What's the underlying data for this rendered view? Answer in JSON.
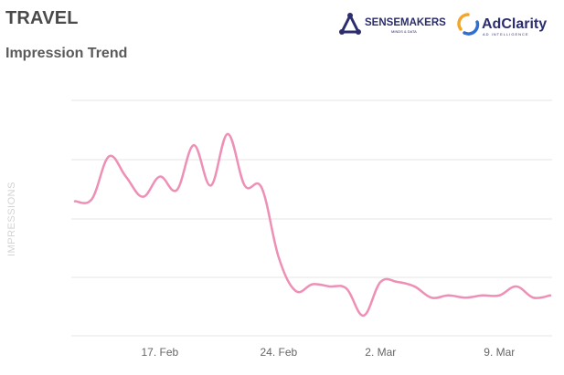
{
  "header": {
    "title": "TRAVEL",
    "subtitle": "Impression Trend"
  },
  "logos": {
    "sensemakers": {
      "name": "SENSEMAKERS",
      "tagline": "MINDS & DATA",
      "color": "#2b2d6e",
      "icon": "triangle-people-icon"
    },
    "adclarity": {
      "name": "AdClarity",
      "tagline": "AD INTELLIGENCE",
      "color": "#2b2d6e",
      "ring_colors": [
        "#f5a623",
        "#2f6fd1"
      ],
      "icon": "ring-icon"
    }
  },
  "colors": {
    "line": "#ee8fb6",
    "grid": "#e6e6e6",
    "axis_label": "#d3d3d3",
    "tick": "#666666"
  },
  "chart_data": {
    "type": "line",
    "title": "Impression Trend",
    "xlabel": "",
    "ylabel": "IMPRESSIONS",
    "x_ticks": [
      "17. Feb",
      "24. Feb",
      "2. Mar",
      "9. Mar"
    ],
    "x": [
      "2025-02-12",
      "2025-02-13",
      "2025-02-14",
      "2025-02-15",
      "2025-02-16",
      "2025-02-17",
      "2025-02-18",
      "2025-02-19",
      "2025-02-20",
      "2025-02-21",
      "2025-02-22",
      "2025-02-23",
      "2025-02-24",
      "2025-02-25",
      "2025-02-26",
      "2025-02-27",
      "2025-02-28",
      "2025-03-01",
      "2025-03-02",
      "2025-03-03",
      "2025-03-04",
      "2025-03-05",
      "2025-03-06",
      "2025-03-07",
      "2025-03-08",
      "2025-03-09",
      "2025-03-10",
      "2025-03-11",
      "2025-03-12"
    ],
    "series": [
      {
        "values": [
          60,
          61,
          80,
          71,
          62,
          71,
          65,
          85,
          67,
          90,
          67,
          66,
          35,
          20,
          23,
          22,
          21,
          9,
          24,
          24,
          22,
          17,
          18,
          17,
          18,
          18,
          22,
          17,
          18
        ]
      }
    ],
    "ylim": [
      0,
      105
    ],
    "y_grid": [
      0,
      25,
      50,
      75,
      100
    ],
    "grid": true,
    "legend": "none"
  }
}
